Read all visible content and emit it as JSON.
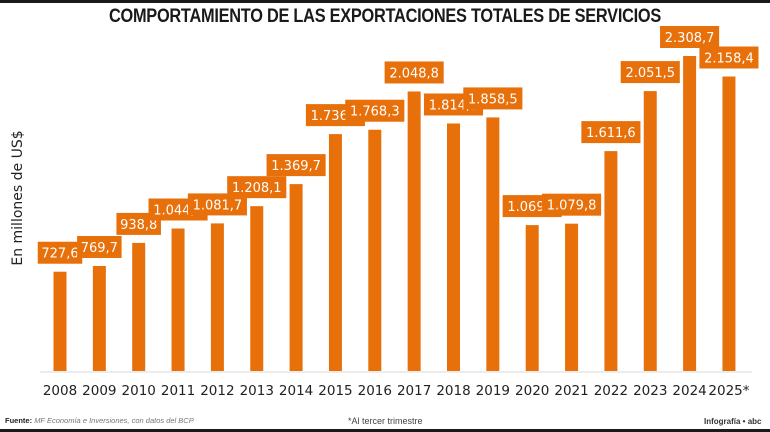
{
  "title": "COMPORTAMIENTO DE LAS EXPORTACIONES TOTALES DE SERVICIOS",
  "ylabel": "En millones de US$",
  "footer": {
    "source_label": "Fuente:",
    "source_text": "MF Economía e Inversiones, con datos del BCP",
    "note": "*Al tercer trimestre",
    "credit": "Infografía • abc"
  },
  "colors": {
    "bar": "#E8700A",
    "label_bg": "#E8700A",
    "label_text": "#ffffff",
    "axis": "#e6e6e6"
  },
  "chart_data": {
    "type": "bar",
    "title": "COMPORTAMIENTO DE LAS EXPORTACIONES TOTALES DE SERVICIOS",
    "xlabel": "",
    "ylabel": "En millones de US$",
    "ylim": [
      0,
      2308.7
    ],
    "grid": false,
    "categories": [
      "2008",
      "2009",
      "2010",
      "2011",
      "2012",
      "2013",
      "2014",
      "2015",
      "2016",
      "2017",
      "2018",
      "2019",
      "2020",
      "2021",
      "2022",
      "2023",
      "2024",
      "2025*"
    ],
    "values": [
      727.6,
      769.7,
      938.8,
      1044.4,
      1081.7,
      1208.1,
      1369.7,
      1736.2,
      1768.3,
      2048.8,
      1814.2,
      1858.5,
      1069.3,
      1079.8,
      1611.6,
      2051.5,
      2308.7,
      2158.4
    ],
    "data_labels": [
      "727,6",
      "769,7",
      "938,8",
      "1.044,4",
      "1.081,7",
      "1.208,1",
      "1.369,7",
      "1.736,2",
      "1.768,3",
      "2.048,8",
      "1.814,2",
      "1.858,5",
      "1.069,3",
      "1.079,8",
      "1.611,6",
      "2.051,5",
      "2.308,7",
      "2.158,4"
    ]
  }
}
